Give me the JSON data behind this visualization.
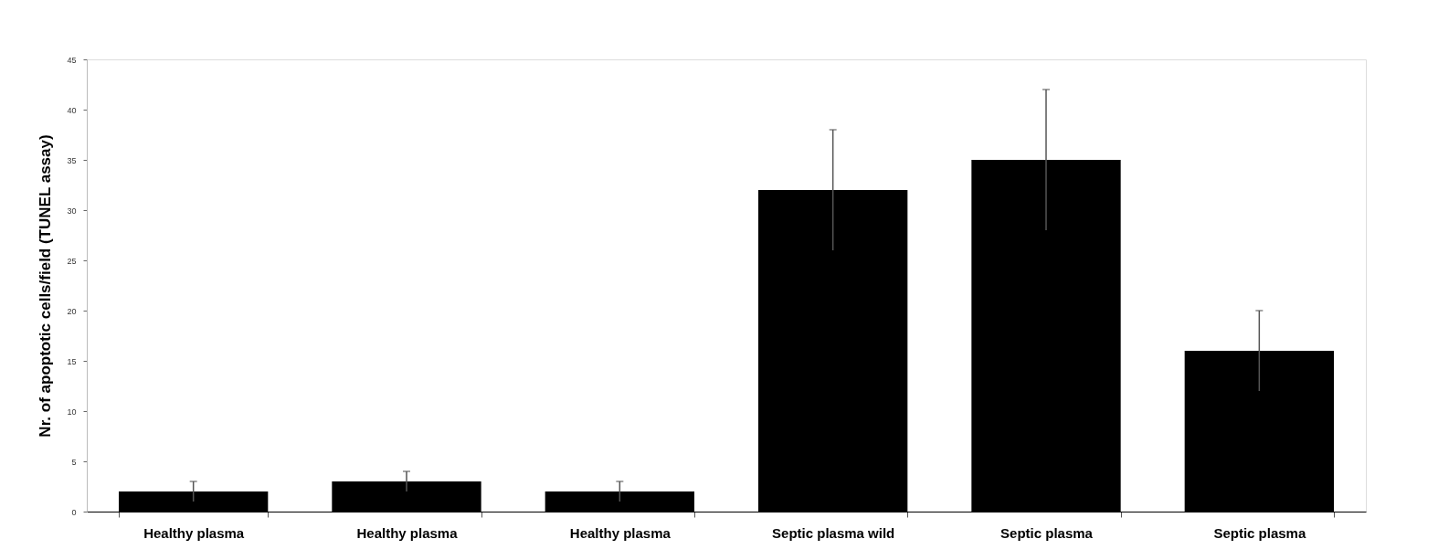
{
  "chart_data": {
    "type": "bar",
    "ylabel": "Nr. of apoptotic cells/field (TUNEL assay)",
    "categories": [
      "Healthy plasma",
      "Healthy plasma",
      "Healthy plasma",
      "Septic plasma wild",
      "Septic plasma",
      "Septic plasma"
    ],
    "values": [
      2,
      3,
      2,
      32,
      35,
      16
    ],
    "errors": [
      1,
      1,
      1,
      6,
      7,
      4
    ],
    "color": "#000000",
    "ylim": [
      0,
      45
    ],
    "yticks": [
      0,
      5,
      10,
      15,
      20,
      25,
      30,
      35,
      40,
      45
    ],
    "grid": false
  }
}
